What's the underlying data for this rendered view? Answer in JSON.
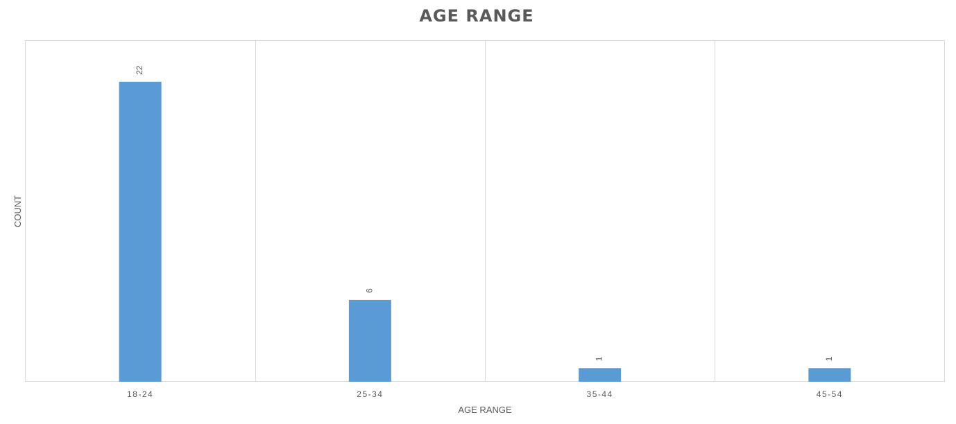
{
  "chart_data": {
    "type": "bar",
    "title": "AGE RANGE",
    "xlabel": "AGE RANGE",
    "ylabel": "COUNT",
    "categories": [
      "18-24",
      "25-34",
      "35-44",
      "45-54"
    ],
    "values": [
      22,
      6,
      1,
      1
    ],
    "data_labels": [
      "22",
      "6",
      "1",
      "1"
    ],
    "ylim": [
      0,
      25
    ],
    "grid": "vertical",
    "legend": "none",
    "bar_color": "#5b9bd5"
  }
}
